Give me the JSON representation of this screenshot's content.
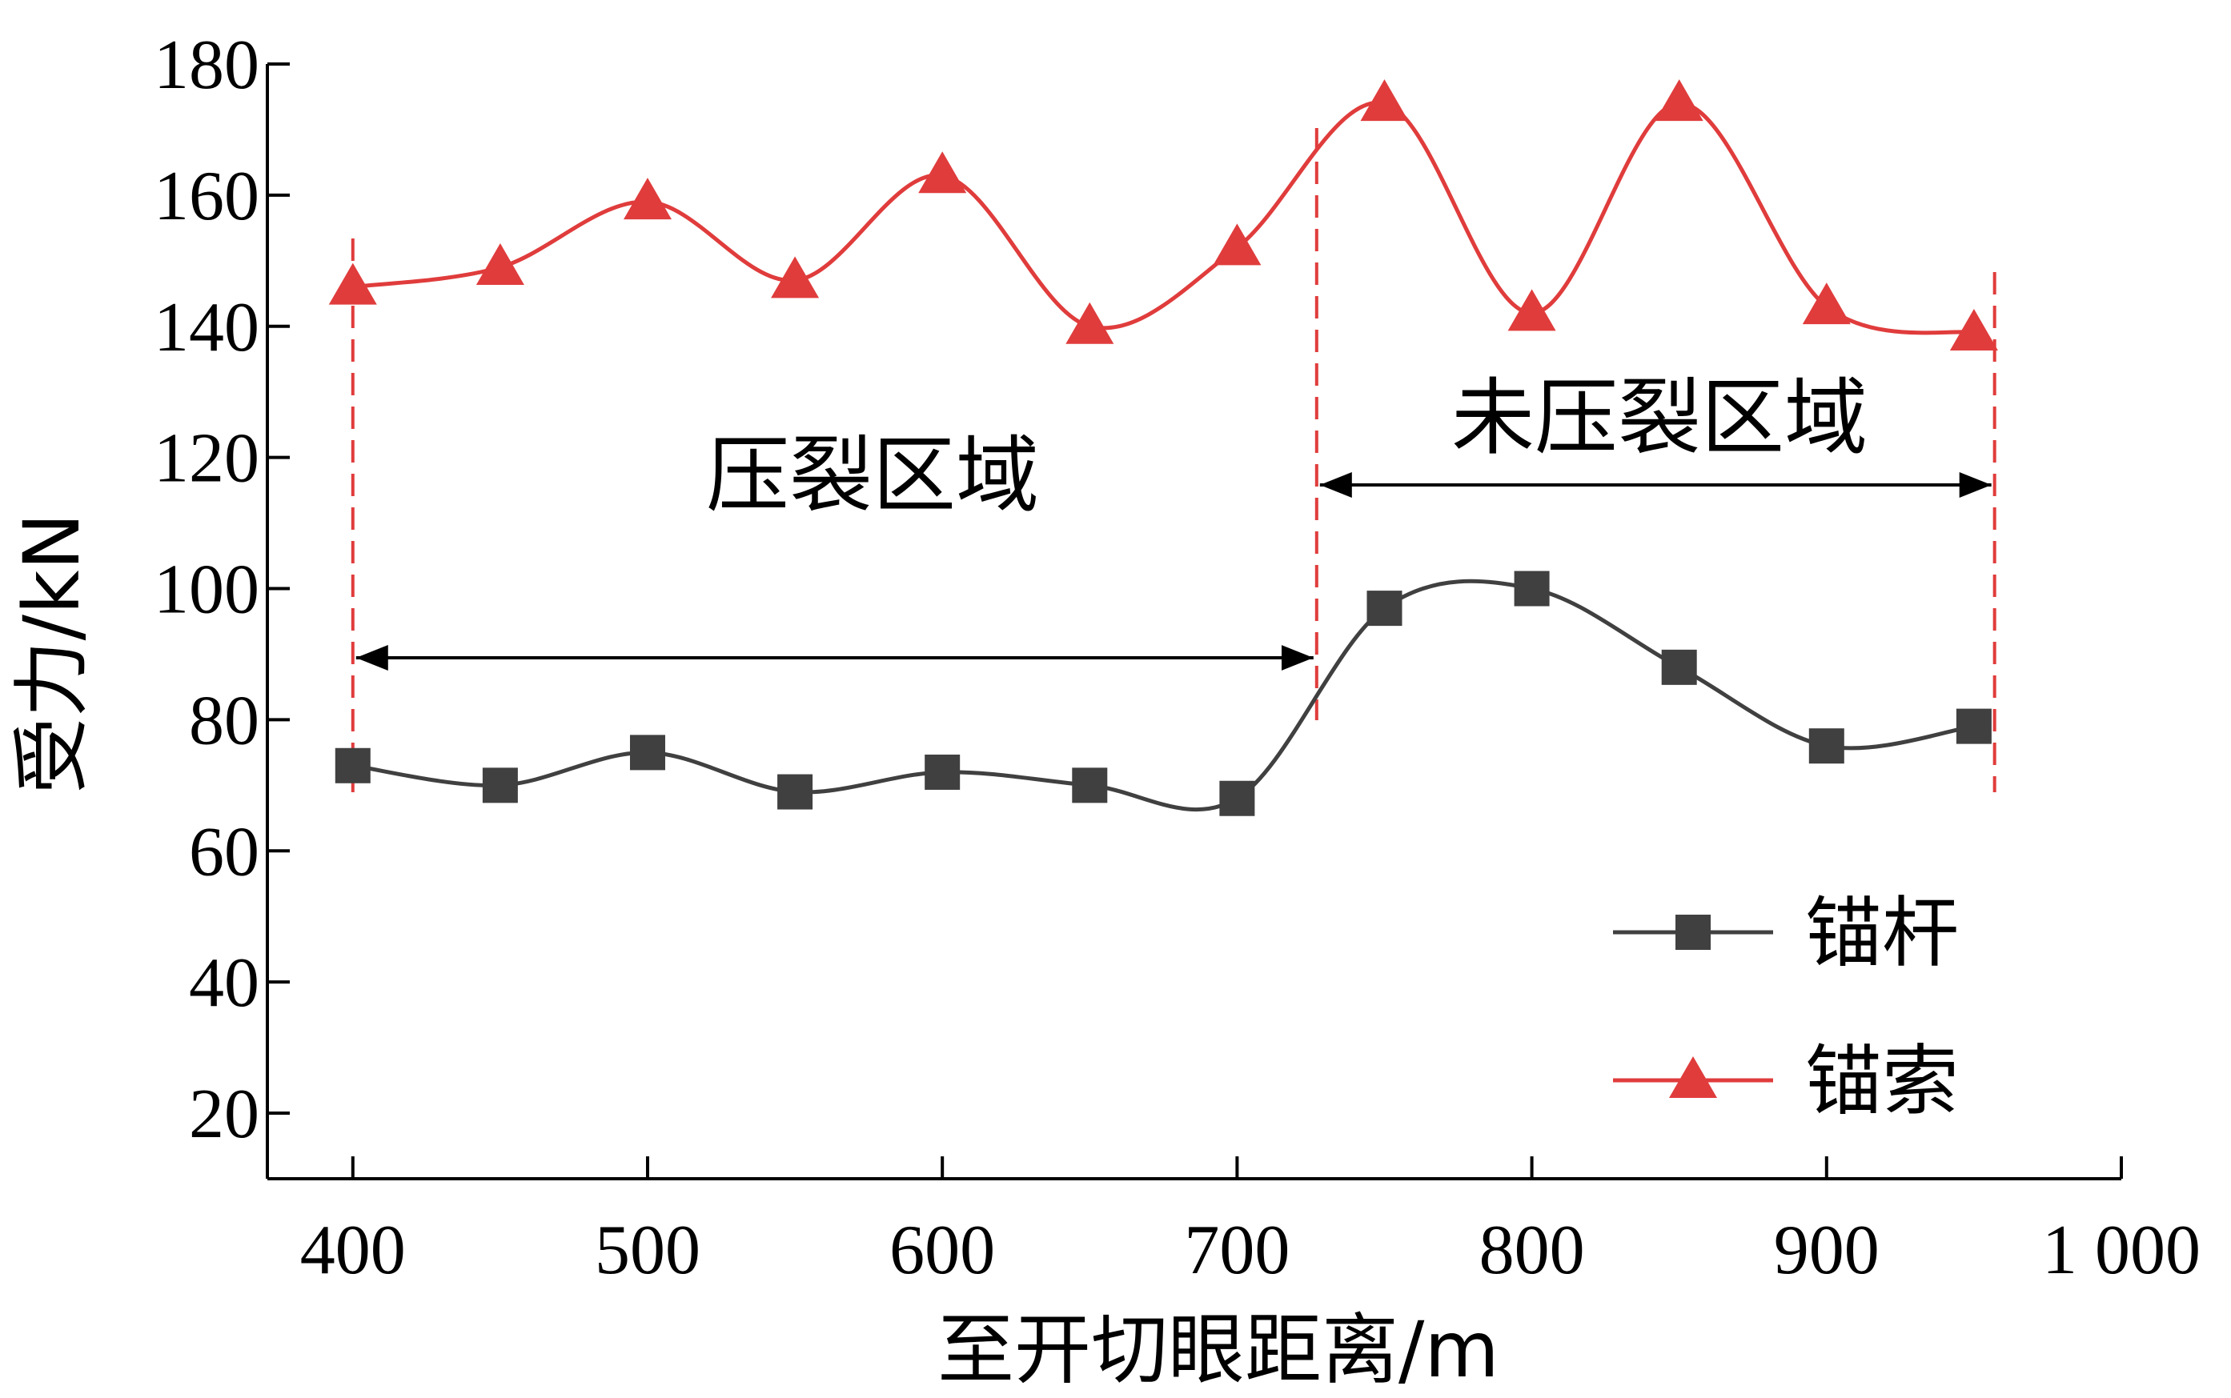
{
  "chart_data": {
    "type": "line",
    "xlabel": "至开切眼距离/m",
    "ylabel": "受力/kN",
    "xlim": [
      371,
      1000
    ],
    "ylim": [
      10,
      180
    ],
    "xticks": [
      400,
      500,
      600,
      700,
      800,
      900,
      1000
    ],
    "xtick_labels": [
      "400",
      "500",
      "600",
      "700",
      "800",
      "900",
      "1 000"
    ],
    "yticks": [
      20,
      40,
      60,
      80,
      100,
      120,
      140,
      160,
      180
    ],
    "ytick_labels": [
      "20",
      "40",
      "60",
      "80",
      "100",
      "120",
      "140",
      "160",
      "180"
    ],
    "grid": false,
    "legend_position": "bottom-right",
    "x": [
      400,
      450,
      500,
      550,
      600,
      650,
      700,
      750,
      800,
      850,
      900,
      950
    ],
    "series": [
      {
        "name": "锚杆",
        "marker": "square",
        "color": "#404040",
        "values": [
          73,
          70,
          75,
          69,
          72,
          70,
          68,
          97,
          100,
          88,
          76,
          79
        ]
      },
      {
        "name": "锚索",
        "marker": "triangle",
        "color": "#e03c3c",
        "values": [
          146,
          149,
          159,
          147,
          163,
          140,
          152,
          174,
          142,
          174,
          143,
          139
        ]
      }
    ],
    "annotations": {
      "zones": [
        {
          "label": "压裂区域",
          "x_start": 400,
          "x_end": 727
        },
        {
          "label": "未压裂区域",
          "x_start": 727,
          "x_end": 957
        }
      ],
      "boundary_color": "#e03c3c"
    }
  }
}
